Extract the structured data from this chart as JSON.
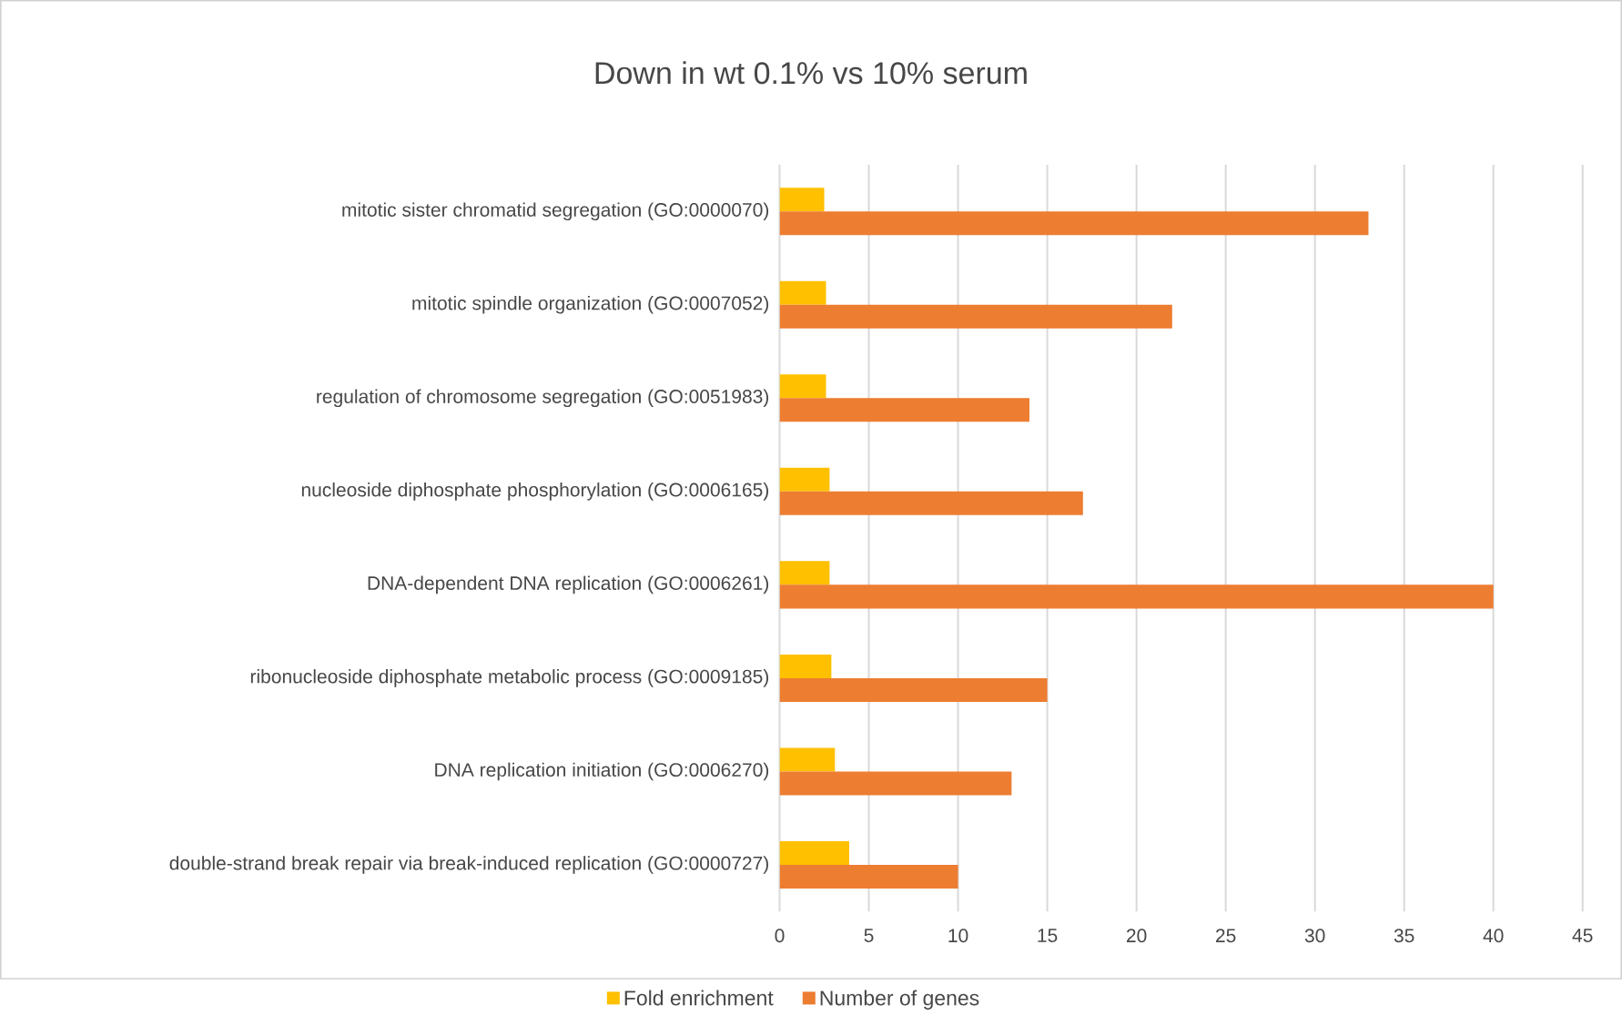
{
  "chart_data": {
    "type": "bar",
    "orientation": "horizontal",
    "title": "Down in wt 0.1% vs 10% serum",
    "categories": [
      "mitotic sister chromatid segregation (GO:0000070)",
      "mitotic spindle organization (GO:0007052)",
      "regulation of chromosome segregation (GO:0051983)",
      "nucleoside diphosphate phosphorylation (GO:0006165)",
      "DNA-dependent DNA replication (GO:0006261)",
      "ribonucleoside diphosphate metabolic process (GO:0009185)",
      "DNA replication initiation (GO:0006270)",
      "double-strand break repair via break-induced replication (GO:0000727)"
    ],
    "series": [
      {
        "name": "Fold enrichment",
        "color": "#ffc000",
        "values": [
          2.5,
          2.6,
          2.6,
          2.8,
          2.8,
          2.9,
          3.1,
          3.9
        ]
      },
      {
        "name": "Number of genes",
        "color": "#ed7d31",
        "values": [
          33,
          22,
          14,
          17,
          40,
          15,
          13,
          10
        ]
      }
    ],
    "xlim": [
      0,
      45
    ],
    "xticks": [
      0,
      5,
      10,
      15,
      20,
      25,
      30,
      35,
      40,
      45
    ],
    "grid": "x",
    "legend": "bottom"
  }
}
